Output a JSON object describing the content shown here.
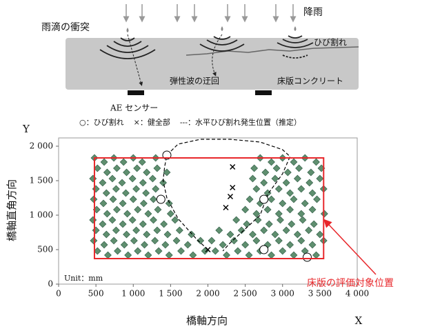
{
  "diagram": {
    "rain": "降雨",
    "impact": "雨滴の衝突",
    "crack": "ひび割れ",
    "detour": "弾性波の迂回",
    "slab": "床版コンクリート",
    "sensor": "AE センサー"
  },
  "chart_data": {
    "type": "scatter",
    "xlabel": "橋軸方向",
    "x_axis_name": "X",
    "ylabel": "橋軸直角方向",
    "y_axis_name": "Y",
    "unit": "Unit：mm",
    "xlim": [
      0,
      4000
    ],
    "ylim": [
      0,
      2120
    ],
    "xticks": [
      0,
      500,
      {
        "value": 1000,
        "label": "1 000"
      },
      {
        "value": 1500,
        "label": "1 500"
      },
      {
        "value": 2000,
        "label": "2 000"
      },
      {
        "value": 2500,
        "label": "2 500"
      },
      {
        "value": 3000,
        "label": "3 000"
      },
      {
        "value": 3500,
        "label": "3 500"
      },
      {
        "value": 4000,
        "label": "4 000"
      }
    ],
    "yticks": [
      0,
      500,
      {
        "value": 1000,
        "label": "1 000"
      },
      {
        "value": 1500,
        "label": "1 500"
      },
      {
        "value": 2000,
        "label": "2 000"
      }
    ],
    "series": [
      {
        "color": "#5f8f6f",
        "marker": "diamond",
        "x": [
          480,
          610,
          740,
          870,
          1000,
          1120,
          1300,
          520,
          650,
          780,
          910,
          1050,
          1180,
          1320,
          1450,
          460,
          590,
          720,
          850,
          990,
          1130,
          1260,
          1400,
          500,
          640,
          770,
          900,
          1040,
          1170,
          1300,
          470,
          600,
          730,
          860,
          1000,
          1140,
          1270,
          1480,
          510,
          650,
          780,
          920,
          1060,
          1200,
          1330,
          1500,
          460,
          590,
          720,
          860,
          990,
          1130,
          1270,
          1410,
          1560,
          500,
          640,
          770,
          910,
          1040,
          1180,
          1320,
          1460,
          1620,
          1780,
          470,
          610,
          740,
          880,
          1010,
          1150,
          1290,
          1430,
          1580,
          1730,
          1900,
          520,
          660,
          790,
          930,
          1060,
          1200,
          1340,
          1480,
          1640,
          1800,
          1960,
          2700,
          2850,
          3000,
          3150,
          3300,
          3450,
          2620,
          2770,
          2920,
          3070,
          3220,
          3380,
          3520,
          2600,
          2750,
          2900,
          3050,
          3200,
          3360,
          3500,
          2650,
          2800,
          2950,
          3100,
          3250,
          3400,
          3550,
          2560,
          2700,
          2850,
          3000,
          3150,
          3300,
          3460,
          2500,
          2650,
          2800,
          2950,
          3100,
          3250,
          3400,
          3560,
          2380,
          2520,
          2670,
          2820,
          2970,
          3120,
          3270,
          3420,
          2150,
          2300,
          2450,
          2600,
          2750,
          2900,
          3050,
          3200,
          3350,
          3500,
          2050,
          2200,
          2350,
          2500,
          2650,
          2800,
          2950,
          3100,
          3250,
          3400,
          3550,
          2100,
          2250,
          2400,
          2550,
          2700,
          2850,
          3000,
          3150,
          3300,
          3450
        ],
        "values": [
          1830,
          1770,
          1830,
          1770,
          1830,
          1770,
          1830,
          1680,
          1620,
          1680,
          1620,
          1680,
          1620,
          1680,
          1620,
          1530,
          1470,
          1530,
          1470,
          1530,
          1470,
          1530,
          1470,
          1380,
          1320,
          1380,
          1320,
          1380,
          1320,
          1380,
          1230,
          1170,
          1230,
          1170,
          1230,
          1170,
          1230,
          1170,
          1080,
          1020,
          1080,
          1020,
          1080,
          1020,
          1080,
          1020,
          930,
          870,
          930,
          870,
          930,
          870,
          930,
          870,
          930,
          780,
          720,
          780,
          720,
          780,
          720,
          780,
          720,
          780,
          720,
          630,
          570,
          630,
          570,
          630,
          570,
          630,
          570,
          630,
          570,
          630,
          480,
          420,
          480,
          420,
          480,
          420,
          480,
          420,
          480,
          420,
          480,
          1830,
          1770,
          1830,
          1770,
          1830,
          1770,
          1680,
          1620,
          1680,
          1620,
          1680,
          1620,
          1680,
          1530,
          1470,
          1530,
          1470,
          1530,
          1470,
          1530,
          1380,
          1320,
          1380,
          1320,
          1380,
          1320,
          1380,
          1230,
          1170,
          1230,
          1170,
          1230,
          1170,
          1230,
          1080,
          1020,
          1080,
          1020,
          1080,
          1020,
          1080,
          1020,
          930,
          870,
          930,
          870,
          930,
          870,
          930,
          870,
          780,
          720,
          780,
          720,
          780,
          720,
          780,
          720,
          780,
          720,
          630,
          570,
          630,
          570,
          630,
          570,
          630,
          570,
          630,
          570,
          630,
          480,
          420,
          480,
          420,
          480,
          420,
          480,
          420,
          480,
          420
        ]
      },
      {
        "name": "○：ひび割れ",
        "color": "#000000",
        "marker": "circle",
        "x": [
          1450,
          1370,
          2750,
          2750,
          3330
        ],
        "values": [
          1870,
          1230,
          1230,
          500,
          390
        ]
      },
      {
        "name": "×：健全部",
        "color": "#000000",
        "marker": "cross",
        "x": [
          2330,
          2330,
          2300,
          2240,
          2000
        ],
        "values": [
          1700,
          1400,
          1270,
          1110,
          500
        ]
      },
      {
        "name": "---：水平ひび割れ発生位置（推定）",
        "color": "#000000",
        "marker": "dashed-line",
        "x": [
          2000,
          1850,
          1600,
          1450,
          1400,
          1420,
          1450,
          1600,
          1900,
          2300,
          2700,
          3000,
          3100,
          3000,
          2800,
          2700,
          2500,
          2300,
          2200
        ],
        "values": [
          500,
          650,
          950,
          1250,
          1500,
          1700,
          1870,
          2030,
          2100,
          2100,
          2060,
          1950,
          1850,
          1600,
          1300,
          1000,
          800,
          600,
          480
        ]
      }
    ],
    "region": {
      "label": "床版の評価対象位置",
      "color": "#e8262a",
      "x": [
        480,
        3550
      ],
      "values": [
        370,
        1830
      ]
    }
  }
}
